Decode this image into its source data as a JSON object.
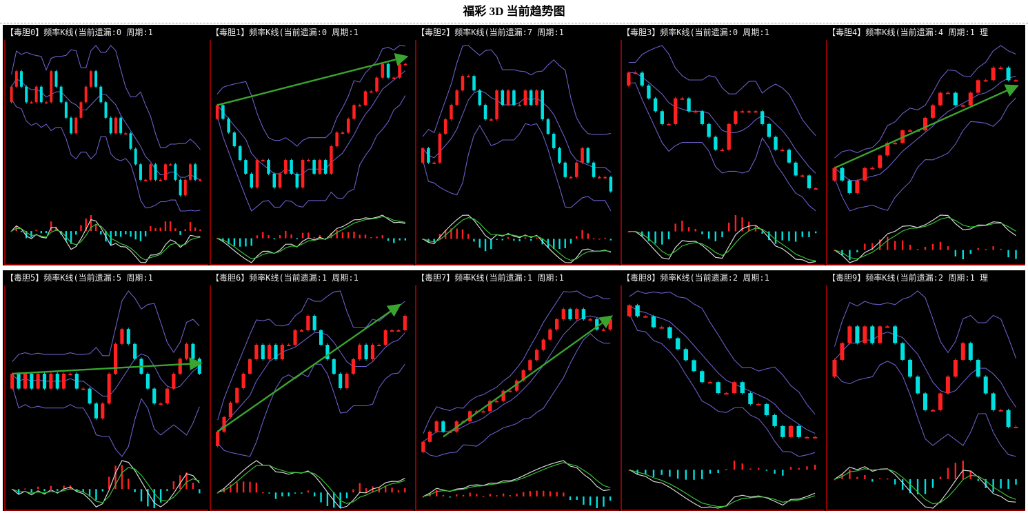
{
  "header": {
    "title": "福彩 3D 当前趋势图"
  },
  "colors": {
    "up_candle": "#ff2020",
    "down_candle": "#00e0e0",
    "band_line": "#6a5fc8",
    "trend_arrow": "#3aa52e",
    "dif_line": "#d8d8d8",
    "dea_line": "#38c038",
    "axis_frame": "#c00000",
    "background": "#000000"
  },
  "chart_data": [
    {
      "type": "candlestick",
      "caption": "【毒胆0】频率K线(当前遗漏:0 周期:1",
      "close": [
        7,
        8,
        7,
        6,
        6,
        7,
        6,
        6,
        8,
        7,
        6,
        5,
        4,
        5,
        6,
        7,
        8,
        7,
        6,
        5,
        4,
        5,
        4,
        4,
        3,
        2,
        1,
        1,
        2,
        1,
        1,
        2,
        2,
        1,
        0,
        1,
        2,
        1,
        1
      ],
      "trend_arrow": null
    },
    {
      "type": "candlestick",
      "caption": "【毒胆1】频率K线(当前遗漏:0 周期:1",
      "close": [
        6,
        5,
        4,
        3,
        2,
        1,
        0,
        2,
        2,
        1,
        0,
        1,
        2,
        1,
        0,
        2,
        2,
        1,
        2,
        1,
        3,
        4,
        4,
        5,
        6,
        6,
        7,
        7,
        8,
        9,
        8,
        8,
        9,
        9
      ],
      "trend_arrow": {
        "from": [
          0,
          6
        ],
        "to": [
          33,
          9.5
        ]
      }
    },
    {
      "type": "candlestick",
      "caption": "【毒胆2】频率K线(当前遗漏:7 周期:1",
      "close": [
        3,
        2,
        2,
        4,
        5,
        6,
        7,
        8,
        8,
        7,
        6,
        5,
        5,
        7,
        6,
        7,
        6,
        6,
        7,
        6,
        7,
        5,
        4,
        3,
        2,
        1,
        1,
        2,
        3,
        2,
        1,
        1,
        1,
        0
      ],
      "trend_arrow": null
    },
    {
      "type": "candlestick",
      "caption": "【毒胆3】频率K线(当前遗漏:0 周期:1",
      "close": [
        9,
        9,
        8,
        7,
        6,
        5,
        5,
        7,
        7,
        6,
        6,
        5,
        4,
        3,
        3,
        5,
        6,
        6,
        6,
        6,
        5,
        4,
        3,
        3,
        2,
        1,
        1,
        0,
        0
      ],
      "trend_arrow": null
    },
    {
      "type": "candlestick",
      "caption": "【毒胆4】频率K线(当前遗漏:4 周期:1 理",
      "close": [
        3,
        2,
        1,
        2,
        3,
        3,
        4,
        5,
        5,
        6,
        6,
        6,
        7,
        8,
        9,
        9,
        8,
        8,
        9,
        10,
        10,
        11,
        11,
        10,
        10
      ],
      "trend_arrow": {
        "from": [
          0,
          3
        ],
        "to": [
          24,
          9.5
        ]
      }
    },
    {
      "type": "candlestick",
      "caption": "【毒胆5】频率K线(当前遗漏:5 周期:1",
      "close": [
        5,
        4,
        5,
        4,
        5,
        4,
        5,
        4,
        5,
        5,
        4,
        4,
        3,
        2,
        3,
        5,
        7,
        8,
        7,
        6,
        5,
        4,
        3,
        3,
        4,
        5,
        6,
        7,
        6,
        5
      ],
      "trend_arrow": {
        "from": [
          0,
          5
        ],
        "to": [
          29,
          5.7
        ]
      }
    },
    {
      "type": "candlestick",
      "caption": "【毒胆6】频率K线(当前遗漏:1 周期:1",
      "close": [
        1,
        2,
        3,
        4,
        5,
        6,
        7,
        6,
        7,
        6,
        7,
        7,
        8,
        8,
        9,
        8,
        7,
        6,
        5,
        4,
        5,
        6,
        7,
        6,
        7,
        7,
        8,
        8,
        8,
        9
      ],
      "trend_arrow": {
        "from": [
          0,
          1
        ],
        "to": [
          28,
          9.7
        ]
      }
    },
    {
      "type": "candlestick",
      "caption": "【毒胆7】频率K线(当前遗漏:1 周期:1",
      "close": [
        0,
        1,
        2,
        1,
        1,
        2,
        2,
        3,
        3,
        3,
        4,
        4,
        5,
        5,
        6,
        7,
        8,
        9,
        10,
        11,
        12,
        13,
        12,
        13,
        12,
        12,
        11,
        11,
        12
      ],
      "trend_arrow": {
        "from": [
          3,
          0.5
        ],
        "to": [
          28,
          12.2
        ]
      }
    },
    {
      "type": "candlestick",
      "caption": "【毒胆8】频率K线(当前遗漏:2 周期:1",
      "close": [
        12,
        11,
        11,
        10,
        10,
        9,
        8,
        7,
        6,
        5,
        5,
        4,
        4,
        5,
        4,
        3,
        3,
        2,
        1,
        0,
        1,
        0,
        0,
        0
      ],
      "trend_arrow": null
    },
    {
      "type": "candlestick",
      "caption": "【毒胆9】频率K线(当前遗漏:2 周期:1 理",
      "close": [
        4,
        5,
        6,
        5,
        6,
        5,
        6,
        6,
        5,
        4,
        3,
        2,
        1,
        1,
        2,
        3,
        4,
        5,
        4,
        3,
        2,
        1,
        1,
        0,
        0
      ],
      "trend_arrow": null
    }
  ]
}
